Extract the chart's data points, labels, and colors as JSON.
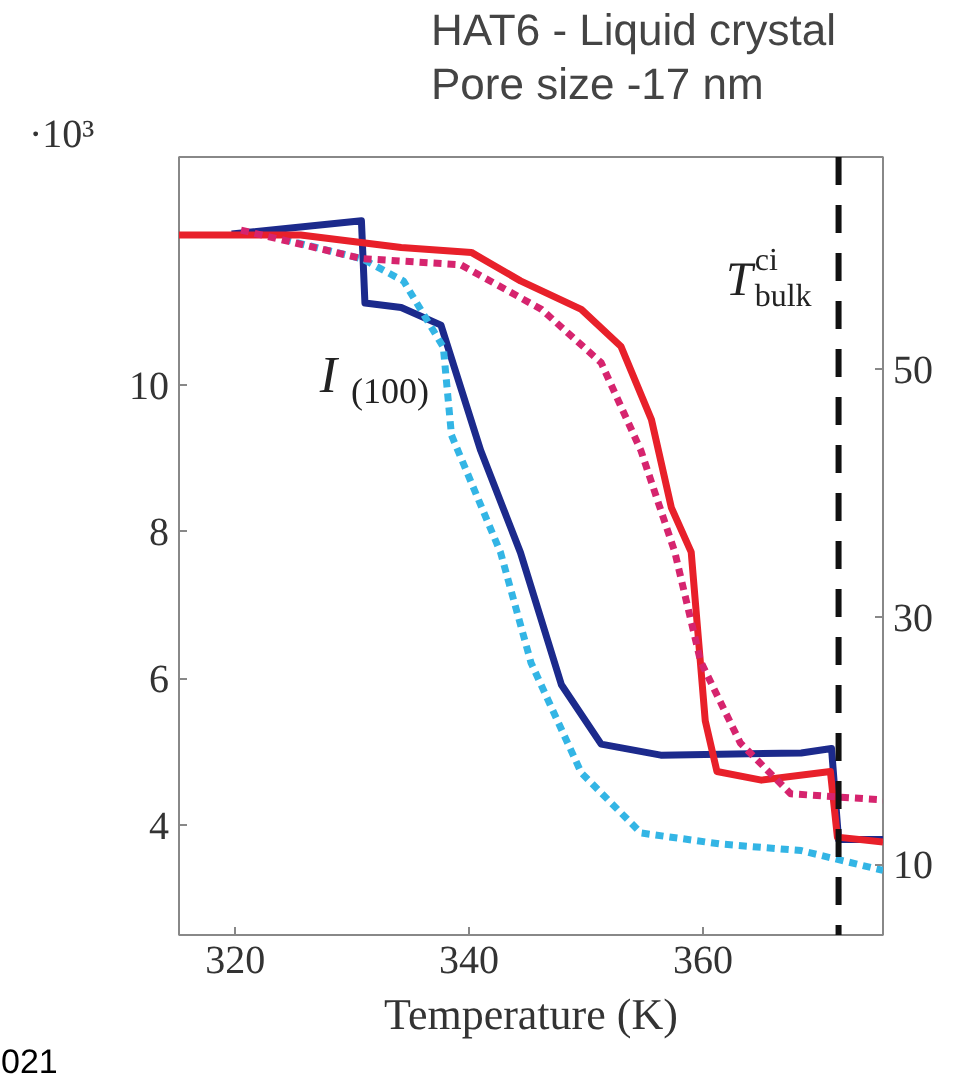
{
  "chart_data": {
    "type": "line",
    "title": "HAT6 -  Liquid crystal",
    "subtitle": "Pore size -17 nm",
    "xlabel": "Temperature (K)",
    "ylabel": "·10³",
    "xlim": [
      315.2,
      375.4
    ],
    "xticks": [
      320,
      340,
      360
    ],
    "ylim": [
      2.5,
      13.1
    ],
    "yticks": [
      4,
      6,
      8,
      10
    ],
    "y2lim": [
      4.3,
      67.1
    ],
    "y2ticks": [
      10,
      30,
      50
    ],
    "grid": false,
    "marker": "none",
    "series": [
      {
        "color": "#1c2a8c",
        "line_style": "solid",
        "x": [
          319.7,
          330.8,
          331.1,
          334.2,
          337.6,
          341.0,
          344.4,
          347.9,
          351.3,
          356.4,
          368.4,
          371.0,
          371.6,
          375.4
        ],
        "values": [
          12.05,
          12.23,
          11.11,
          11.05,
          10.81,
          9.1,
          7.71,
          5.91,
          5.1,
          4.95,
          4.98,
          5.04,
          3.8,
          3.8
        ]
      },
      {
        "color": "#33b5e5",
        "line_style": "dotted",
        "x": [
          324.1,
          330.9,
          334.4,
          337.8,
          338.5,
          342.7,
          345.3,
          349.6,
          354.7,
          361.5,
          368.4,
          375.4
        ],
        "values": [
          11.98,
          11.71,
          11.41,
          10.51,
          9.31,
          7.71,
          6.21,
          4.71,
          3.89,
          3.74,
          3.65,
          3.38
        ]
      },
      {
        "color": "#e8202a",
        "line_style": "solid",
        "axis": "y2",
        "x": [
          315.2,
          325.6,
          334.2,
          340.2,
          344.4,
          349.6,
          353.0,
          355.6,
          357.3,
          359.0,
          360.2,
          361.2,
          365.0,
          370.9,
          371.5,
          375.4
        ],
        "values": [
          60.8,
          60.8,
          59.8,
          59.4,
          57.1,
          54.8,
          51.8,
          45.9,
          38.8,
          35.2,
          21.6,
          17.5,
          16.8,
          17.5,
          12.2,
          11.8
        ]
      },
      {
        "color": "#d6246e",
        "line_style": "dotted",
        "axis": "y2",
        "x": [
          320.5,
          330.8,
          339.3,
          346.2,
          351.3,
          354.7,
          357.6,
          359.8,
          363.2,
          367.5,
          375.4
        ],
        "values": [
          61.2,
          58.9,
          58.4,
          54.8,
          50.5,
          43.4,
          35.2,
          26.4,
          19.8,
          15.7,
          15.2
        ]
      }
    ],
    "ref_lines": [
      {
        "axis": "x",
        "value": 371.6,
        "label": "T$^{ci}$$_{bulk}$",
        "color": "#111111",
        "line_style": "dashed"
      }
    ],
    "annotations": [
      "I$_{(100)}$",
      "021"
    ]
  }
}
